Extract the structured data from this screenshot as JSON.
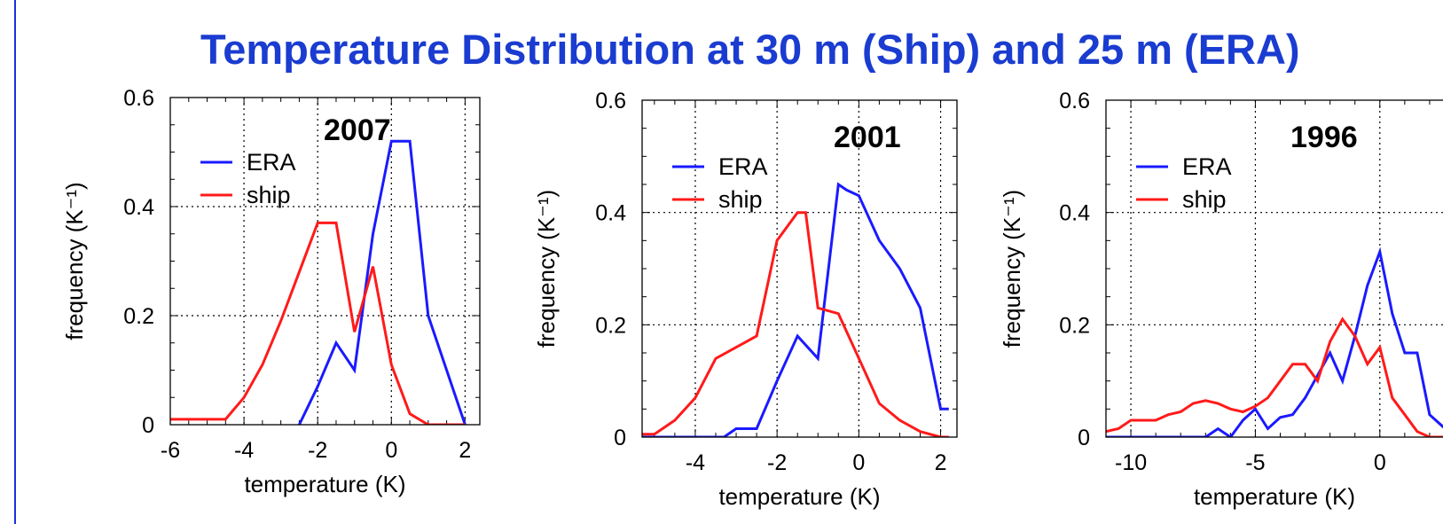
{
  "page": {
    "title": "Temperature Distribution at 30 m (Ship) and 25 m (ERA)",
    "colors": {
      "title": "#1a3cd0",
      "era": "#1a1aff",
      "ship": "#ff1a1a",
      "rule": "#1a2fe0"
    }
  },
  "chart_data": [
    {
      "type": "line",
      "annotation": "2007",
      "xlabel": "temperature (K)",
      "ylabel": "frequency (K⁻¹)",
      "xlim": [
        -6,
        2.4
      ],
      "ylim": [
        0,
        0.6
      ],
      "xticks": [
        -6,
        -4,
        -2,
        0,
        2
      ],
      "yticks": [
        0,
        0.2,
        0.4,
        0.6
      ],
      "ytick_labels": [
        "0",
        "0.2",
        "0.4",
        "0.6"
      ],
      "grid": "dotted",
      "legend_position": "upper-left",
      "series": [
        {
          "name": "ERA",
          "color": "#1a1aff",
          "x": [
            -2.5,
            -2,
            -1.5,
            -1,
            -0.5,
            0,
            0.5,
            1,
            1.5,
            2
          ],
          "y": [
            0.0,
            0.07,
            0.15,
            0.1,
            0.35,
            0.52,
            0.52,
            0.2,
            0.1,
            0.0
          ]
        },
        {
          "name": "ship",
          "color": "#ff1a1a",
          "x": [
            -6,
            -5.5,
            -5,
            -4.5,
            -4,
            -3.5,
            -3,
            -2.5,
            -2,
            -1.5,
            -1,
            -0.5,
            0,
            0.5,
            1,
            1.5,
            2
          ],
          "y": [
            0.01,
            0.01,
            0.01,
            0.01,
            0.05,
            0.11,
            0.19,
            0.28,
            0.37,
            0.37,
            0.17,
            0.29,
            0.11,
            0.02,
            0.0,
            0.0,
            0.0
          ]
        }
      ]
    },
    {
      "type": "line",
      "annotation": "2001",
      "xlabel": "temperature (K)",
      "ylabel": "frequency (K⁻¹)",
      "xlim": [
        -5.3,
        2.4
      ],
      "ylim": [
        0,
        0.6
      ],
      "xticks": [
        -4,
        -2,
        0,
        2
      ],
      "yticks": [
        0,
        0.2,
        0.4,
        0.6
      ],
      "ytick_labels": [
        "0",
        "0.2",
        "0.4",
        "0.6"
      ],
      "grid": "dotted",
      "legend_position": "upper-left",
      "series": [
        {
          "name": "ERA",
          "color": "#1a1aff",
          "x": [
            -5.3,
            -3.3,
            -3,
            -2.5,
            -2,
            -1.5,
            -1,
            -0.5,
            -0.3,
            0,
            0.5,
            1,
            1.5,
            2,
            2.2
          ],
          "y": [
            0.0,
            0.0,
            0.015,
            0.015,
            0.1,
            0.18,
            0.14,
            0.45,
            0.44,
            0.43,
            0.35,
            0.3,
            0.23,
            0.05,
            0.05
          ]
        },
        {
          "name": "ship",
          "color": "#ff1a1a",
          "x": [
            -5.3,
            -5,
            -4.5,
            -4,
            -3.5,
            -3,
            -2.5,
            -2,
            -1.5,
            -1.3,
            -1,
            -0.5,
            0,
            0.5,
            1,
            1.5,
            2,
            2.2
          ],
          "y": [
            0.005,
            0.005,
            0.03,
            0.07,
            0.14,
            0.16,
            0.18,
            0.35,
            0.4,
            0.4,
            0.23,
            0.22,
            0.14,
            0.06,
            0.03,
            0.01,
            0.0,
            0.0
          ]
        }
      ]
    },
    {
      "type": "line",
      "annotation": "1996",
      "xlabel": "temperature (K)",
      "ylabel": "frequency (K⁻¹)",
      "xlim": [
        -11,
        3
      ],
      "ylim": [
        0,
        0.6
      ],
      "xticks": [
        -10,
        -5,
        0
      ],
      "yticks": [
        0,
        0.2,
        0.4,
        0.6
      ],
      "ytick_labels": [
        "0",
        "0.2",
        "0.4",
        "0.6"
      ],
      "grid": "dotted",
      "legend_position": "upper-left",
      "series": [
        {
          "name": "ERA",
          "color": "#1a1aff",
          "x": [
            -11,
            -7,
            -6.5,
            -6,
            -5.5,
            -5,
            -4.5,
            -4,
            -3.5,
            -3,
            -2.5,
            -2,
            -1.5,
            -1,
            -0.5,
            0,
            0.5,
            1,
            1.5,
            2,
            3
          ],
          "y": [
            0.0,
            0.0,
            0.015,
            0.0,
            0.03,
            0.05,
            0.015,
            0.035,
            0.04,
            0.07,
            0.11,
            0.15,
            0.1,
            0.18,
            0.27,
            0.33,
            0.22,
            0.15,
            0.15,
            0.04,
            0.0
          ]
        },
        {
          "name": "ship",
          "color": "#ff1a1a",
          "x": [
            -11,
            -10.5,
            -10,
            -9.5,
            -9,
            -8.5,
            -8,
            -7.5,
            -7,
            -6.5,
            -6,
            -5.5,
            -5,
            -4.5,
            -4,
            -3.5,
            -3,
            -2.5,
            -2,
            -1.5,
            -1,
            -0.5,
            0,
            0.5,
            1,
            1.5,
            2,
            3
          ],
          "y": [
            0.01,
            0.015,
            0.03,
            0.03,
            0.03,
            0.04,
            0.045,
            0.06,
            0.065,
            0.06,
            0.05,
            0.045,
            0.055,
            0.07,
            0.1,
            0.13,
            0.13,
            0.1,
            0.17,
            0.21,
            0.18,
            0.13,
            0.16,
            0.07,
            0.04,
            0.01,
            0.0,
            0.0
          ]
        }
      ]
    }
  ]
}
